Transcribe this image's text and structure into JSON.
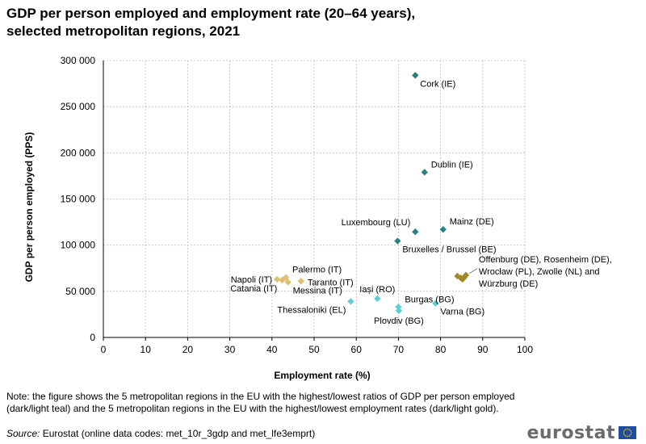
{
  "title_line1": "GDP per person employed and employment rate (20–64 years),",
  "title_line2": "selected metropolitan regions, 2021",
  "note": "Note: the figure shows the 5 metropolitan regions in the EU with the highest/lowest  ratios of GDP per person employed (dark/light teal) and the 5 metropolitan regions in the EU with the highest/lowest employment rates (dark/light gold).",
  "source_label": "Source:",
  "source_text": " Eurostat (online data codes: met_10r_3gdp and met_lfe3emprt)",
  "logo_text": "eurostat",
  "colors": {
    "dark_teal": "#2a7f82",
    "light_teal": "#5ccfd6",
    "dark_gold": "#a08a26",
    "light_gold": "#ddc072",
    "grid": "#bdbdbd",
    "flag_blue": "#1f4e9c",
    "flag_star": "#f4c400"
  },
  "chart_data": {
    "type": "scatter",
    "xlabel": "Employment rate (%)",
    "ylabel": "GDP per person employed (PPS)",
    "xlim": [
      0,
      100
    ],
    "ylim": [
      0,
      300000
    ],
    "xticks": [
      0,
      10,
      20,
      30,
      40,
      50,
      60,
      70,
      80,
      90,
      100
    ],
    "xtick_labels": [
      "0",
      "10",
      "20",
      "30",
      "40",
      "50",
      "60",
      "70",
      "80",
      "90",
      "100"
    ],
    "yticks": [
      0,
      50000,
      100000,
      150000,
      200000,
      250000,
      300000
    ],
    "ytick_labels": [
      "0",
      "50 000",
      "100 000",
      "150 000",
      "200 000",
      "250 000",
      "300 000"
    ],
    "grid": true,
    "series": [
      {
        "name": "Highest GDP per person employed",
        "color_key": "dark_teal",
        "points": [
          {
            "x": 74.0,
            "y": 284000
          },
          {
            "x": 76.2,
            "y": 179000
          },
          {
            "x": 80.6,
            "y": 117000
          },
          {
            "x": 74.0,
            "y": 114500
          },
          {
            "x": 69.8,
            "y": 104500
          }
        ]
      },
      {
        "name": "Lowest GDP per person employed",
        "color_key": "light_teal",
        "points": [
          {
            "x": 58.7,
            "y": 39000
          },
          {
            "x": 65.0,
            "y": 42000
          },
          {
            "x": 70.0,
            "y": 33000
          },
          {
            "x": 78.8,
            "y": 37000
          },
          {
            "x": 70.1,
            "y": 29000
          }
        ]
      },
      {
        "name": "Lowest employment rate",
        "color_key": "light_gold",
        "points": [
          {
            "x": 41.2,
            "y": 63000
          },
          {
            "x": 42.4,
            "y": 62000
          },
          {
            "x": 43.3,
            "y": 65000
          },
          {
            "x": 43.8,
            "y": 60000
          },
          {
            "x": 46.9,
            "y": 61000
          }
        ]
      },
      {
        "name": "Highest employment rate",
        "color_key": "dark_gold",
        "points": [
          {
            "x": 84.0,
            "y": 66500
          },
          {
            "x": 84.8,
            "y": 64500
          },
          {
            "x": 85.2,
            "y": 63000
          },
          {
            "x": 85.6,
            "y": 65000
          },
          {
            "x": 86.0,
            "y": 67500
          }
        ]
      }
    ],
    "annotations": [
      {
        "text": "Cork (IE)",
        "x": 74.0,
        "y": 284000,
        "pos": "below-right"
      },
      {
        "text": "Dublin (IE)",
        "x": 76.2,
        "y": 179000,
        "pos": "upper-right"
      },
      {
        "text": "Mainz (DE)",
        "x": 80.6,
        "y": 117000,
        "pos": "upper-right"
      },
      {
        "text": "Luxembourg (LU)",
        "x": 74.0,
        "y": 114500,
        "pos": "upper-left"
      },
      {
        "text": "Bruxelles / Brussel (BE)",
        "x": 69.8,
        "y": 104500,
        "pos": "below-right"
      },
      {
        "text": "Offenburg (DE), Rosenheim (DE),",
        "x": 86.0,
        "y": 67500,
        "pos": "right-line1"
      },
      {
        "text": "Wrocław (PL), Zwolle (NL) and",
        "x": 86.0,
        "y": 67500,
        "pos": "right-line2"
      },
      {
        "text": "Würzburg (DE)",
        "x": 86.0,
        "y": 67500,
        "pos": "right-line3"
      },
      {
        "text": "Palermo (IT)",
        "x": 43.3,
        "y": 65000,
        "pos": "upper-right"
      },
      {
        "text": "Napoli (IT)",
        "x": 41.2,
        "y": 63000,
        "pos": "left"
      },
      {
        "text": "Taranto  (IT)",
        "x": 46.9,
        "y": 61000,
        "pos": "right"
      },
      {
        "text": "Catania  (IT)",
        "x": 42.4,
        "y": 62000,
        "pos": "below-left"
      },
      {
        "text": "Messina (IT)",
        "x": 43.8,
        "y": 60000,
        "pos": "below-right"
      },
      {
        "text": "Iași (RO)",
        "x": 65.0,
        "y": 42000,
        "pos": "above"
      },
      {
        "text": "Burgas (BG)",
        "x": 70.0,
        "y": 33000,
        "pos": "upper-right"
      },
      {
        "text": "Thessaloniki (EL)",
        "x": 58.7,
        "y": 39000,
        "pos": "below-left"
      },
      {
        "text": "Varna (BG)",
        "x": 78.8,
        "y": 37000,
        "pos": "below-right"
      },
      {
        "text": "Plovdiv (BG)",
        "x": 70.1,
        "y": 29000,
        "pos": "below"
      }
    ]
  }
}
